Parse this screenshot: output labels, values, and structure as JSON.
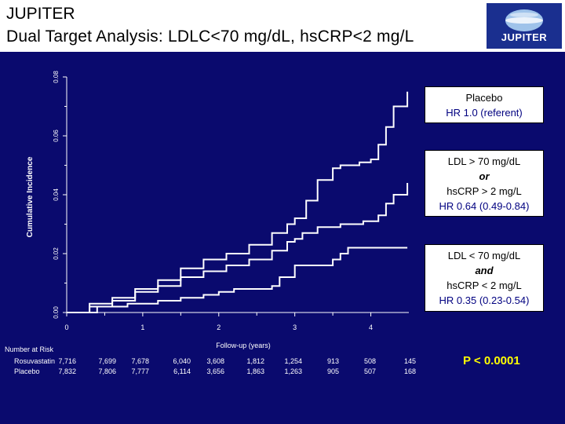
{
  "header": {
    "title": "JUPITER",
    "subtitle": "Dual Target Analysis: LDLC<70 mg/dL, hsCRP<2 mg/L",
    "logo_text": "JUPITER"
  },
  "colors": {
    "background": "#0a0a6e",
    "curves": "#ffffff",
    "p_value": "#ffff00",
    "hr_text": "#000080"
  },
  "legend_boxes": {
    "placebo": {
      "line1": "Placebo",
      "line2": "HR 1.0 (referent)"
    },
    "either": {
      "line1": "LDL > 70 mg/dL",
      "line2": "or",
      "line3": "hsCRP > 2 mg/L",
      "line4": "HR 0.64 (0.49-0.84)"
    },
    "both": {
      "line1": "LDL < 70 mg/dL",
      "line2": "and",
      "line3": "hsCRP < 2 mg/L",
      "line4": "HR 0.35 (0.23-0.54)"
    }
  },
  "p_value": "P < 0.0001",
  "risk_table": {
    "title": "Number at Risk",
    "rows": [
      {
        "label": "Rosuvastatin",
        "values": [
          "7,716",
          "7,699",
          "7,678",
          "6,040",
          "3,608",
          "1,812",
          "1,254",
          "913",
          "508",
          "145"
        ]
      },
      {
        "label": "Placebo",
        "values": [
          "7,832",
          "7,806",
          "7,777",
          "6,114",
          "3,656",
          "1,863",
          "1,263",
          "905",
          "507",
          "168"
        ]
      }
    ]
  },
  "chart_data": {
    "type": "line",
    "xlabel": "Follow-up (years)",
    "ylabel": "Cumulative Incidence",
    "xlim": [
      0,
      4.5
    ],
    "ylim": [
      0,
      0.08
    ],
    "x_ticks": [
      "0",
      "1",
      "2",
      "3",
      "4"
    ],
    "y_ticks": [
      "0.00",
      "0.02",
      "0.04",
      "0.06",
      "0.08"
    ],
    "series": [
      {
        "name": "Placebo",
        "x": [
          0,
          0.3,
          0.6,
          0.9,
          1.2,
          1.5,
          1.8,
          2.1,
          2.4,
          2.7,
          2.9,
          3.0,
          3.15,
          3.3,
          3.5,
          3.6,
          3.85,
          4.0,
          4.1,
          4.2,
          4.3,
          4.48
        ],
        "y": [
          0,
          0.003,
          0.005,
          0.008,
          0.011,
          0.015,
          0.018,
          0.02,
          0.023,
          0.027,
          0.03,
          0.032,
          0.038,
          0.045,
          0.049,
          0.05,
          0.051,
          0.052,
          0.057,
          0.063,
          0.07,
          0.075
        ]
      },
      {
        "name": "LDL > 70 mg/dL or hsCRP > 2 mg/L",
        "x": [
          0,
          0.3,
          0.6,
          0.9,
          1.2,
          1.5,
          1.8,
          2.1,
          2.4,
          2.7,
          2.9,
          3.0,
          3.1,
          3.3,
          3.6,
          3.9,
          4.1,
          4.2,
          4.3,
          4.48
        ],
        "y": [
          0,
          0.002,
          0.004,
          0.007,
          0.009,
          0.012,
          0.014,
          0.016,
          0.018,
          0.021,
          0.024,
          0.025,
          0.027,
          0.029,
          0.03,
          0.031,
          0.033,
          0.037,
          0.04,
          0.044
        ]
      },
      {
        "name": "LDL < 70 mg/dL and hsCRP < 2 mg/L",
        "x": [
          0,
          0.4,
          0.8,
          1.2,
          1.5,
          1.8,
          2.0,
          2.2,
          2.5,
          2.7,
          2.8,
          3.0,
          3.5,
          3.6,
          3.7,
          4.0,
          4.48
        ],
        "y": [
          0,
          0.002,
          0.003,
          0.004,
          0.005,
          0.006,
          0.007,
          0.008,
          0.008,
          0.009,
          0.012,
          0.016,
          0.018,
          0.02,
          0.022,
          0.022,
          0.022
        ]
      }
    ]
  }
}
